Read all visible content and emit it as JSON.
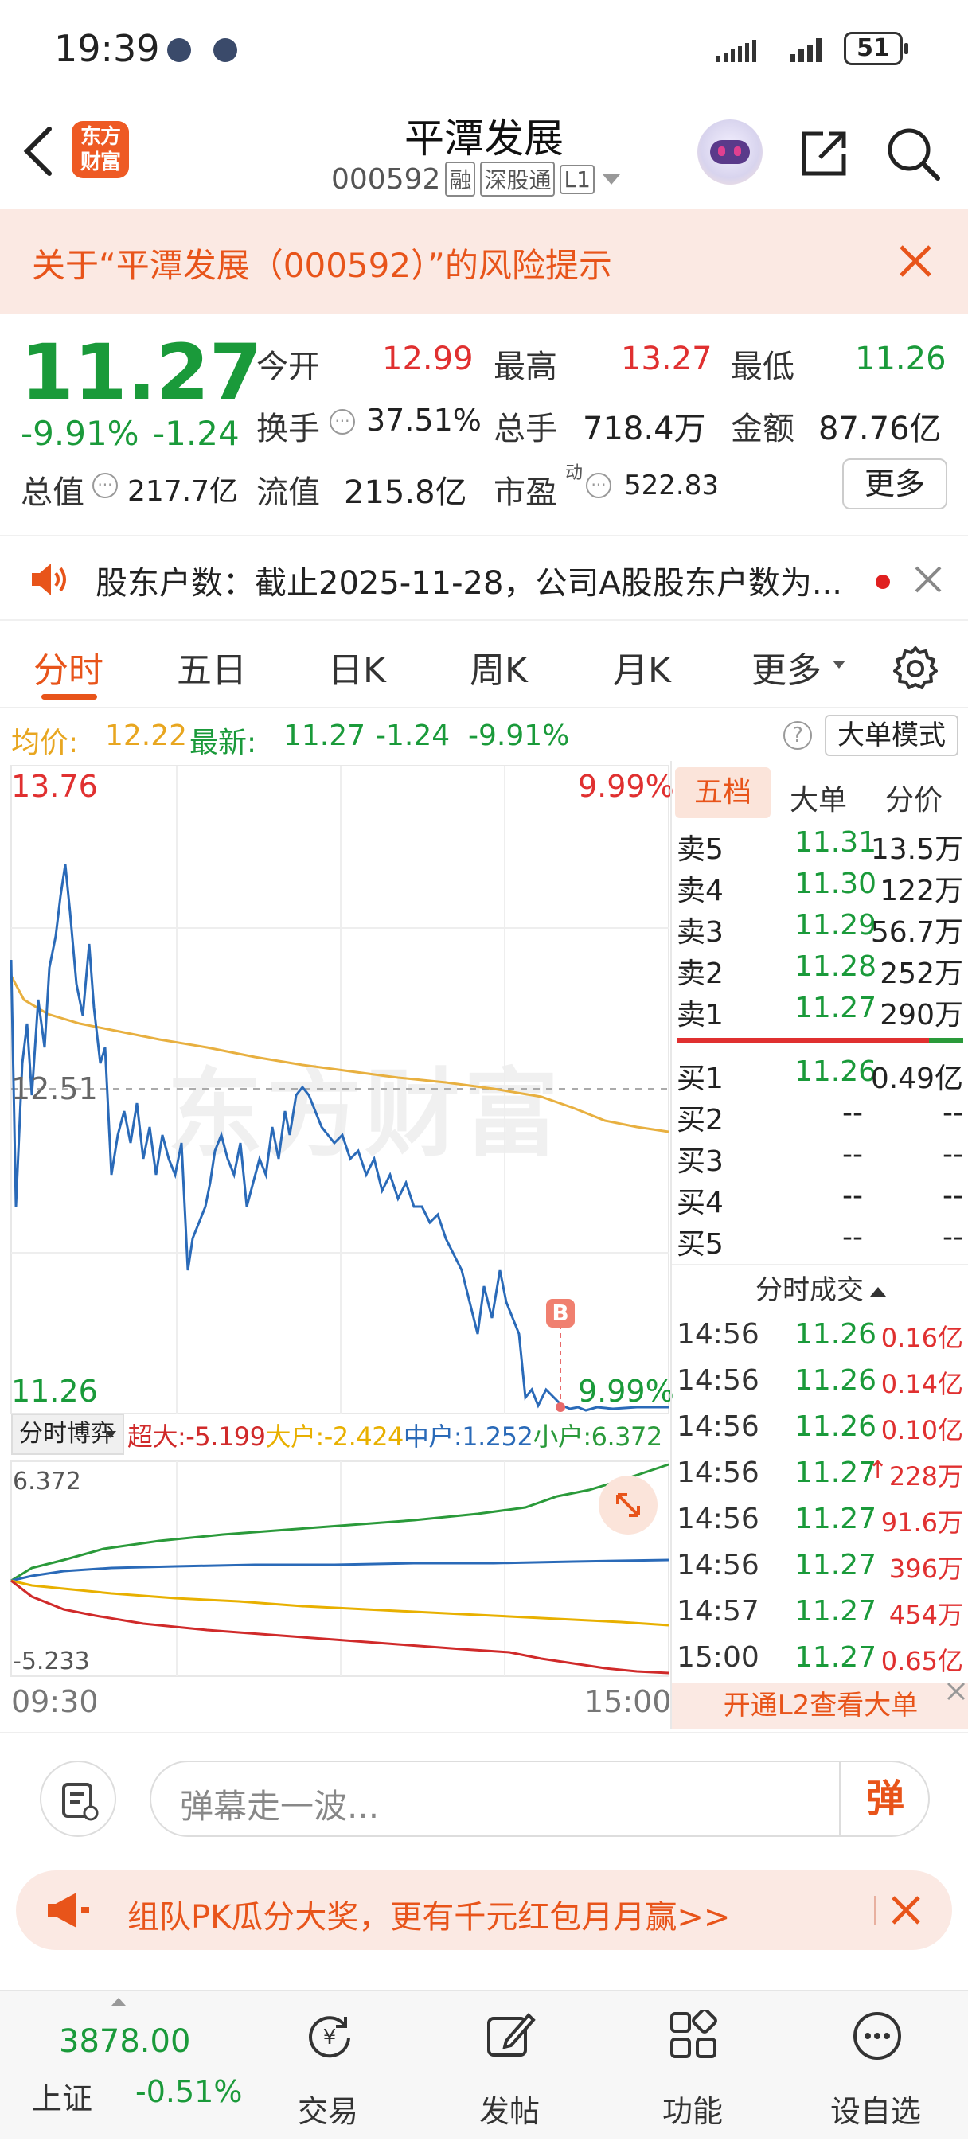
{
  "status": {
    "time": "19:39",
    "battery": "51"
  },
  "header": {
    "logo_text": "东方财富",
    "title": "平潭发展",
    "code": "000592",
    "tags": [
      "融",
      "深股通",
      "L1"
    ]
  },
  "risk_banner": {
    "text": "关于“平潭发展（000592）”的风险提示"
  },
  "quote": {
    "price": "11.27",
    "change_pct": "-9.91%",
    "change": "-1.24",
    "open_label": "今开",
    "open": "12.99",
    "high_label": "最高",
    "high": "13.27",
    "low_label": "最低",
    "low": "11.26",
    "turnover_label": "换手",
    "turnover": "37.51%",
    "volume_label": "总手",
    "volume": "718.4万",
    "amount_label": "金额",
    "amount": "87.76亿",
    "mcap_label": "总值",
    "mcap": "217.7亿",
    "float_label": "流值",
    "float": "215.8亿",
    "pe_label": "市盈",
    "pe_sup": "动",
    "pe": "522.83",
    "more_button": "更多"
  },
  "notice": {
    "text": "股东户数：截止2025-11-28，公司A股股东户数为..."
  },
  "tabs": [
    {
      "label": "分时"
    },
    {
      "label": "五日"
    },
    {
      "label": "日K"
    },
    {
      "label": "周K"
    },
    {
      "label": "月K"
    },
    {
      "label": "更多"
    }
  ],
  "avgbar": {
    "avg_label": "均价:",
    "avg": "12.22",
    "latest_label": "最新:",
    "latest": "11.27",
    "change": "-1.24",
    "pct": "-9.91%",
    "mode_button": "大单模式"
  },
  "chart": {
    "watermark": "东方财富",
    "price_max": "13.76",
    "pct_max": "9.99%",
    "price_mid": "12.51",
    "price_min": "11.26",
    "pct_min": "9.99%",
    "b_marker": "B",
    "time_start": "09:30",
    "time_end": "15:00",
    "flow_selector": "分时博弈",
    "flows": [
      {
        "label": "超大:",
        "value": "-5.199",
        "color": "#d02a2a"
      },
      {
        "label": "大户:",
        "value": "-2.424",
        "color": "#e8b000"
      },
      {
        "label": "中户:",
        "value": "1.252",
        "color": "#2a6ab8"
      },
      {
        "label": "小户:",
        "value": "6.372",
        "color": "#2a9a3a"
      }
    ],
    "flow_max": "6.372",
    "flow_min": "-5.233"
  },
  "orderbook": {
    "tabs": [
      "五档",
      "大单",
      "分价"
    ],
    "asks": [
      {
        "label": "卖5",
        "price": "11.31",
        "vol": "13.5万"
      },
      {
        "label": "卖4",
        "price": "11.30",
        "vol": "122万"
      },
      {
        "label": "卖3",
        "price": "11.29",
        "vol": "56.7万"
      },
      {
        "label": "卖2",
        "price": "11.28",
        "vol": "252万"
      },
      {
        "label": "卖1",
        "price": "11.27",
        "vol": "290万"
      }
    ],
    "bids": [
      {
        "label": "买1",
        "price": "11.26",
        "vol": "0.49亿"
      },
      {
        "label": "买2",
        "price": "--",
        "vol": "--"
      },
      {
        "label": "买3",
        "price": "--",
        "vol": "--"
      },
      {
        "label": "买4",
        "price": "--",
        "vol": "--"
      },
      {
        "label": "买5",
        "price": "--",
        "vol": "--"
      }
    ],
    "trades_title": "分时成交",
    "trades": [
      {
        "time": "14:56",
        "price": "11.26",
        "vol": "0.16亿"
      },
      {
        "time": "14:56",
        "price": "11.26",
        "vol": "0.14亿"
      },
      {
        "time": "14:56",
        "price": "11.26",
        "vol": "0.10亿"
      },
      {
        "time": "14:56",
        "price": "11.27",
        "vol": "228万"
      },
      {
        "time": "14:56",
        "price": "11.27",
        "vol": "91.6万"
      },
      {
        "time": "14:56",
        "price": "11.27",
        "vol": "396万"
      },
      {
        "time": "14:57",
        "price": "11.27",
        "vol": "454万"
      },
      {
        "time": "15:00",
        "price": "11.27",
        "vol": "0.65亿"
      }
    ],
    "l2_link": "开通L2查看大单"
  },
  "danmu": {
    "placeholder": "弹幕走一波...",
    "button": "弹"
  },
  "promo": {
    "text": "组队PK瓜分大奖，更有千元红包月月赢>>"
  },
  "bottom_nav": {
    "index_value": "3878.00",
    "index_name": "上证",
    "index_change": "-0.51%",
    "items": [
      {
        "label": "交易",
        "icon": "trade-icon"
      },
      {
        "label": "发帖",
        "icon": "post-icon"
      },
      {
        "label": "功能",
        "icon": "grid-icon"
      },
      {
        "label": "设自选",
        "icon": "more-icon"
      }
    ]
  },
  "colors": {
    "up": "#e03030",
    "down": "#1a9a3a",
    "accent": "#e8541a",
    "avg_line": "#e8b040",
    "price_line": "#2a6ab8"
  }
}
